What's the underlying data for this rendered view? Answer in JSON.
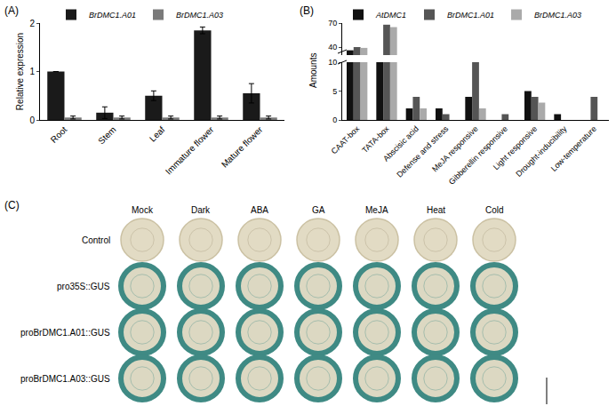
{
  "chart_data": [
    {
      "panel": "(A)",
      "type": "bar",
      "categories": [
        "Root",
        "Stem",
        "Leaf",
        "Immature flower",
        "Mature flower"
      ],
      "ylabel": "Relative expression",
      "ylim": [
        0,
        2
      ],
      "yticks": [
        0,
        1,
        2
      ],
      "legend": "top",
      "series": [
        {
          "name": "BrDMC1.A01",
          "color": "#1a1a1a",
          "values": [
            1.0,
            0.15,
            0.5,
            1.85,
            0.55
          ],
          "errors": [
            0,
            0.12,
            0.1,
            0.07,
            0.2
          ]
        },
        {
          "name": "BrDMC1.A03",
          "color": "#7a7a7a",
          "values": [
            0.05,
            0.05,
            0.05,
            0.05,
            0.05
          ],
          "errors": [
            0.03,
            0.03,
            0.03,
            0.03,
            0.03
          ]
        }
      ]
    },
    {
      "panel": "(B)",
      "type": "bar",
      "categories": [
        "CAAT-box",
        "TATA-box",
        "Abscisic acid",
        "Defense and stress",
        "MeJA responsive",
        "Gibberellin responsive",
        "Light responsive",
        "Drought-inducibility",
        "Low-temperature"
      ],
      "ylabel": "Amounts",
      "ylim": [
        [
          0,
          10
        ],
        [
          30,
          70
        ]
      ],
      "yticks": [
        [
          0,
          5,
          10
        ],
        [
          40,
          70
        ]
      ],
      "legend": "top",
      "series": [
        {
          "name": "AtDMC1",
          "color": "#111111",
          "values": [
            36,
            10,
            2,
            2,
            4,
            0,
            5,
            1,
            0
          ]
        },
        {
          "name": "BrDMC1.A01",
          "color": "#555555",
          "values": [
            40,
            68,
            4,
            1,
            10,
            1,
            4,
            0,
            4
          ]
        },
        {
          "name": "BrDMC1.A03",
          "color": "#aaaaaa",
          "values": [
            39,
            65,
            2,
            0,
            2,
            0,
            3,
            0,
            0
          ]
        }
      ]
    }
  ],
  "image_grid": {
    "panel": "(C)",
    "columns": [
      "Mock",
      "Dark",
      "ABA",
      "GA",
      "MeJA",
      "Heat",
      "Cold"
    ],
    "rows": [
      "Control",
      "pro35S::GUS",
      "proBrDMC1.A01::GUS",
      "proBrDMC1.A03::GUS"
    ]
  }
}
